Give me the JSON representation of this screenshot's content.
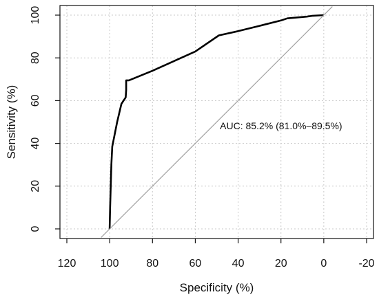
{
  "chart_data": {
    "type": "line",
    "title": "",
    "xlabel": "Specificity (%)",
    "ylabel": "Sensitivity (%)",
    "x_reversed": true,
    "xlim": [
      120,
      -20
    ],
    "ylim": [
      0,
      100
    ],
    "x_ticks": [
      120,
      100,
      80,
      60,
      40,
      20,
      0,
      -20
    ],
    "y_ticks": [
      0,
      20,
      40,
      60,
      80,
      100
    ],
    "grid": true,
    "grid_style": "dotted",
    "annotation": "AUC: 85.2% (81.0%–89.5%)",
    "series": [
      {
        "name": "",
        "color": "#000000",
        "points": [
          [
            100.0,
            0.0
          ],
          [
            99.8,
            10.0
          ],
          [
            99.5,
            20.0
          ],
          [
            99.2,
            30.0
          ],
          [
            98.8,
            38.5
          ],
          [
            96.5,
            50.0
          ],
          [
            94.5,
            58.5
          ],
          [
            92.5,
            61.5
          ],
          [
            92.3,
            65.0
          ],
          [
            92.3,
            69.5
          ],
          [
            91.0,
            69.5
          ],
          [
            80.0,
            74.0
          ],
          [
            70.0,
            78.5
          ],
          [
            60.0,
            83.0
          ],
          [
            49.0,
            90.5
          ],
          [
            40.0,
            92.5
          ],
          [
            30.0,
            95.0
          ],
          [
            20.0,
            97.5
          ],
          [
            17.0,
            98.5
          ],
          [
            8.0,
            99.3
          ],
          [
            5.0,
            99.7
          ],
          [
            0.0,
            100.0
          ]
        ]
      },
      {
        "name": "",
        "color": "#a0a0a0",
        "points": [
          [
            104.0,
            -4.0
          ],
          [
            -4.0,
            104.0
          ]
        ]
      }
    ]
  }
}
